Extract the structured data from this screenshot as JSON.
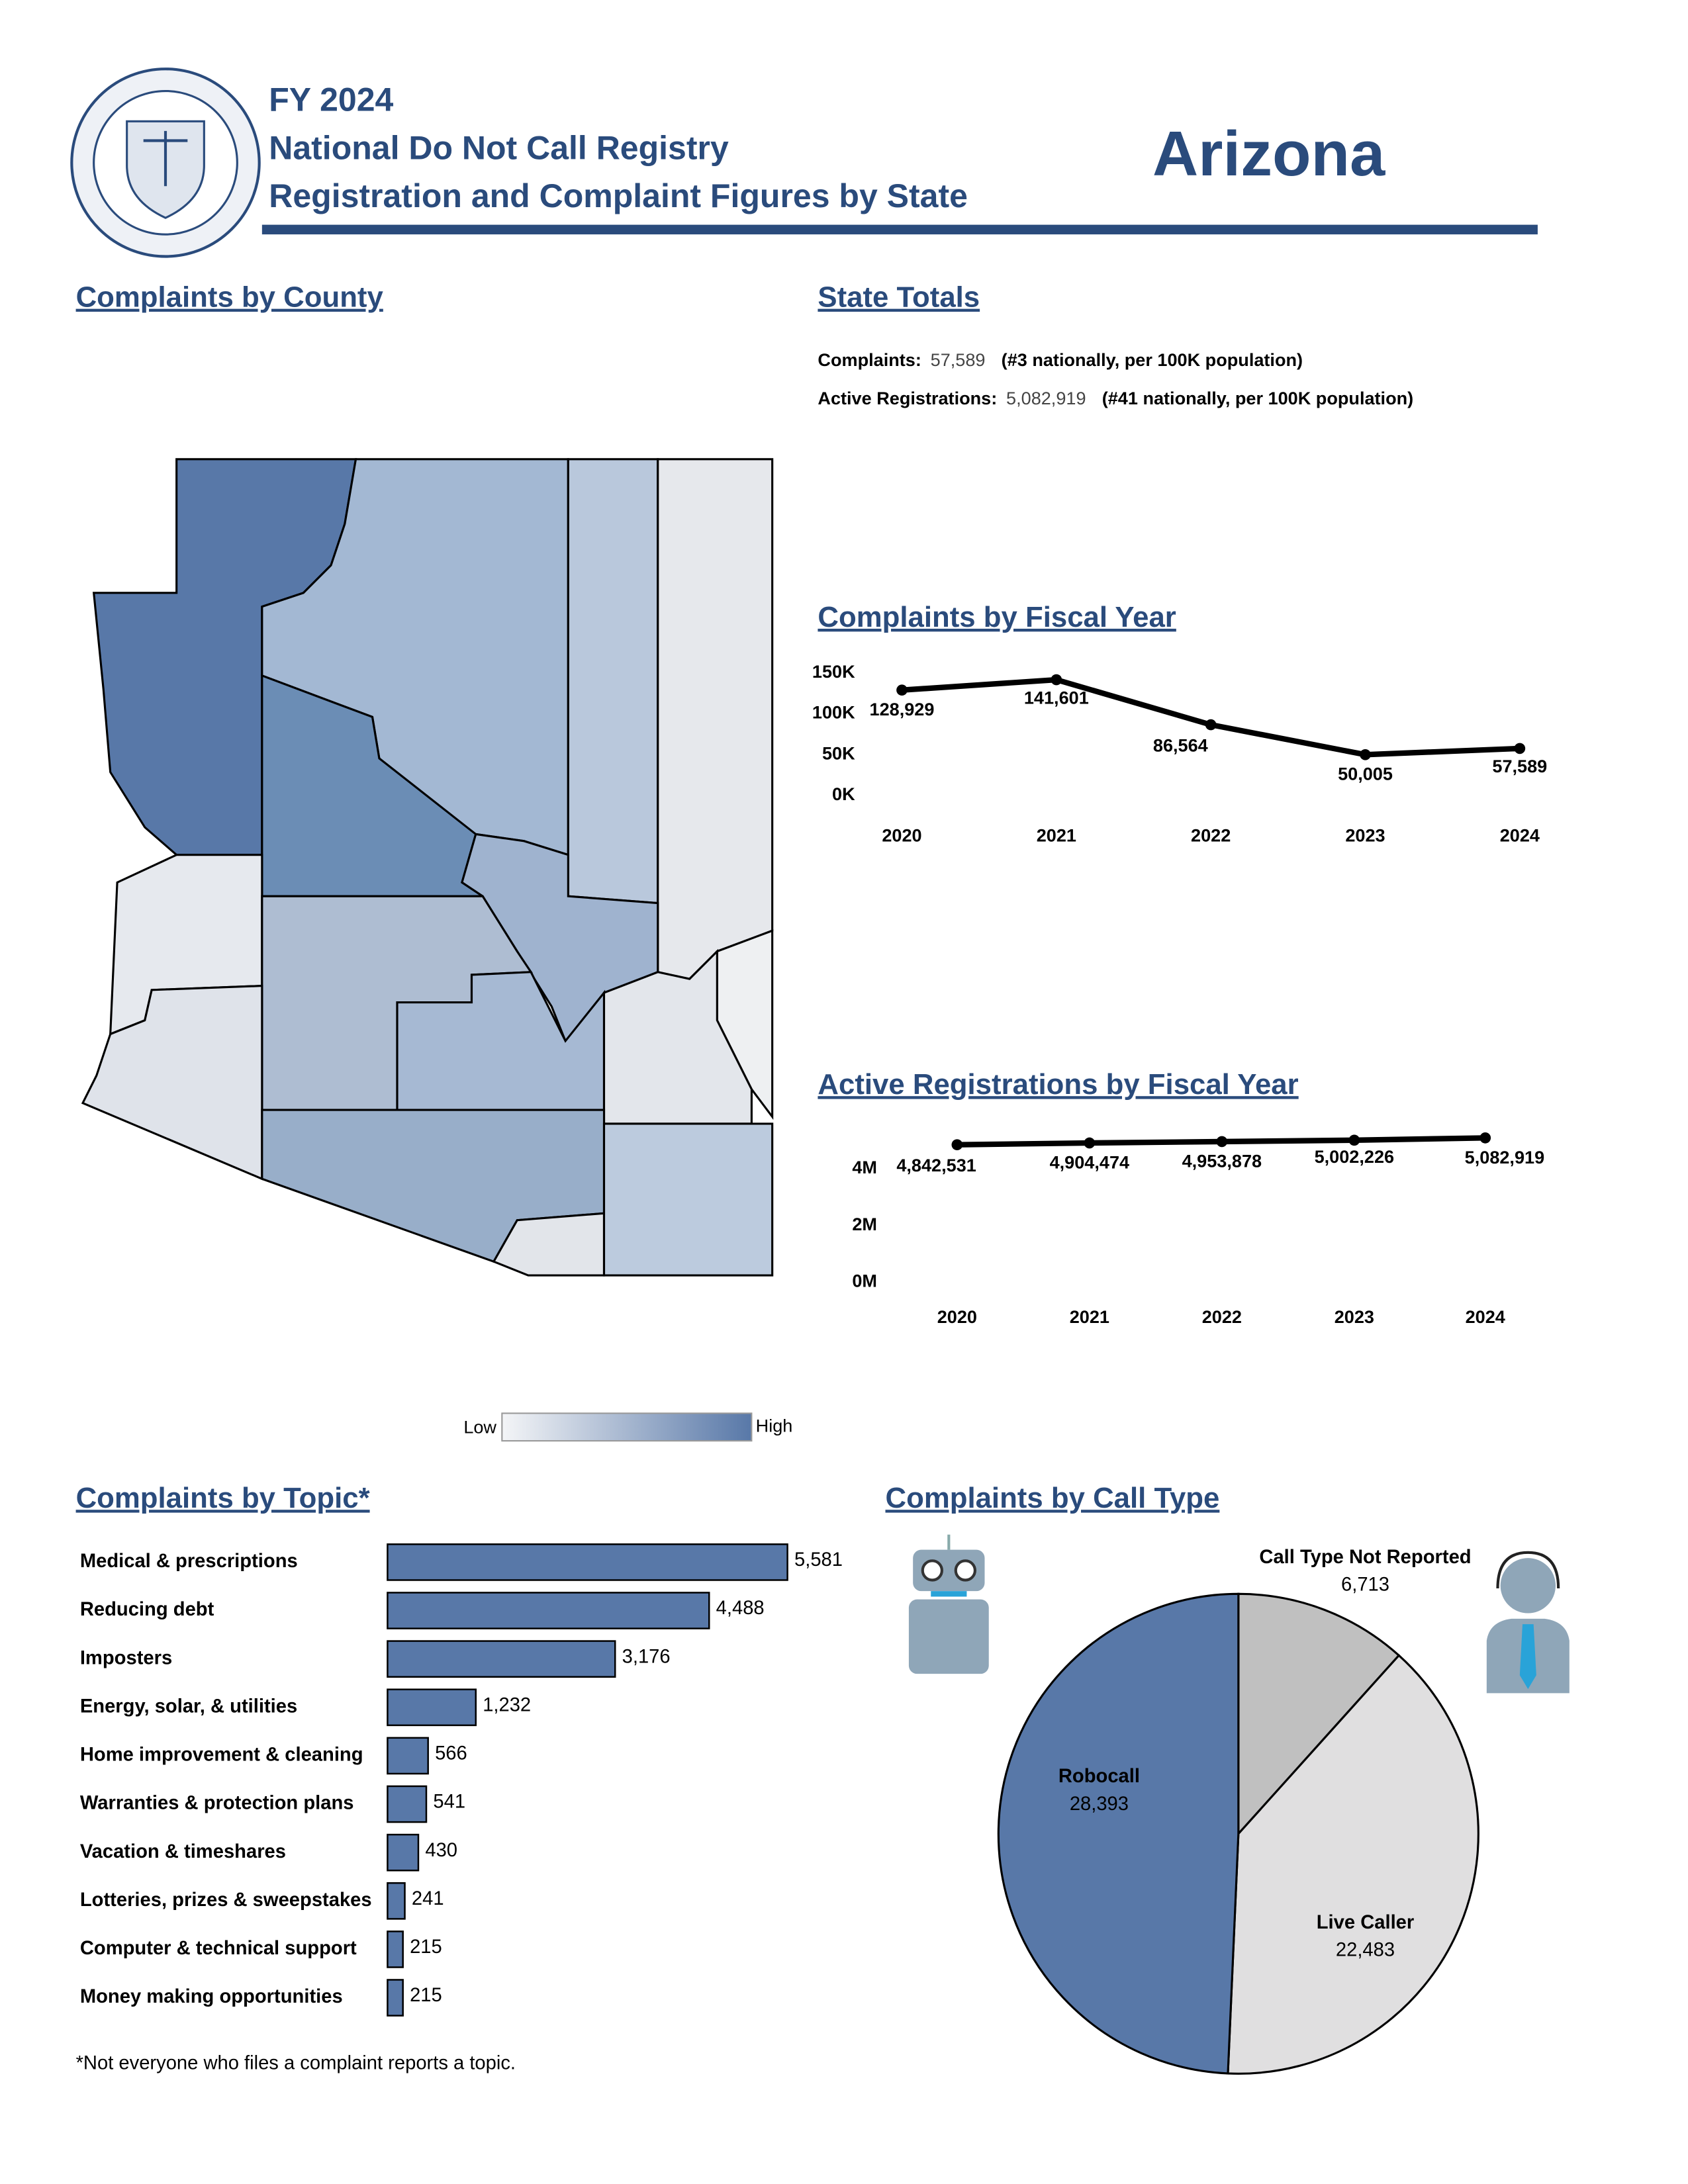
{
  "header": {
    "fiscal_year": "FY 2024",
    "title": "National Do Not Call Registry",
    "subtitle": "Registration and Complaint Figures by State",
    "state": "Arizona"
  },
  "county_map": {
    "title": "Complaints by County",
    "legend_low": "Low",
    "legend_high": "High"
  },
  "state_totals": {
    "title": "State Totals",
    "complaints_label": "Complaints:",
    "complaints": "57,589",
    "complaints_rank": "(#3 nationally, per 100K population)",
    "registrations_label": "Active Registrations:",
    "registrations": "5,082,919",
    "registrations_rank": "(#41 nationally, per 100K population)"
  },
  "chart_data": [
    {
      "type": "line",
      "title": "Complaints by Fiscal Year",
      "categories": [
        "2020",
        "2021",
        "2022",
        "2023",
        "2024"
      ],
      "values": [
        128929,
        141601,
        86564,
        50005,
        57589
      ],
      "value_labels": [
        "128,929",
        "141,601",
        "86,564",
        "50,005",
        "57,589"
      ],
      "color": "#000000",
      "ylim": [
        0,
        150000
      ],
      "yticks": [
        {
          "value": 0,
          "label": "0K"
        },
        {
          "value": 50000,
          "label": "50K"
        },
        {
          "value": 100000,
          "label": "100K"
        },
        {
          "value": 150000,
          "label": "150K"
        }
      ]
    },
    {
      "type": "line",
      "title": "Active Registrations by Fiscal Year",
      "categories": [
        "2020",
        "2021",
        "2022",
        "2023",
        "2024"
      ],
      "values": [
        4842531,
        4904474,
        4953878,
        5002226,
        5082919
      ],
      "value_labels": [
        "4,842,531",
        "4,904,474",
        "4,953,878",
        "5,002,226",
        "5,082,919"
      ],
      "color": "#000000",
      "ylim": [
        0,
        5000000
      ],
      "yticks": [
        {
          "value": 0,
          "label": "0M"
        },
        {
          "value": 2000000,
          "label": "2M"
        },
        {
          "value": 4000000,
          "label": "4M"
        }
      ]
    },
    {
      "type": "hbar",
      "title": "Complaints by Topic*",
      "categories": [
        "Medical & prescriptions",
        "Reducing debt",
        "Imposters",
        "Energy, solar, & utilities",
        "Home improvement & cleaning",
        "Warranties & protection plans",
        "Vacation & timeshares",
        "Lotteries, prizes & sweepstakes",
        "Computer & technical support",
        "Money making opportunities"
      ],
      "values": [
        5581,
        4488,
        3176,
        1232,
        566,
        541,
        430,
        241,
        215,
        215
      ],
      "value_labels": [
        "5,581",
        "4,488",
        "3,176",
        "1,232",
        "566",
        "541",
        "430",
        "241",
        "215",
        "215"
      ],
      "color": "#5878a8"
    },
    {
      "type": "pie",
      "title": "Complaints by Call Type",
      "categories": [
        "Call Type Not Reported",
        "Live Caller",
        "Robocall"
      ],
      "values": [
        6713,
        22483,
        28393
      ],
      "value_labels": [
        "6,713",
        "22,483",
        "28,393"
      ],
      "colors": [
        "#c0c0c0",
        "#e0dfe0",
        "#5878a8"
      ]
    }
  ],
  "footnote": "*Not everyone who files a complaint reports a topic."
}
